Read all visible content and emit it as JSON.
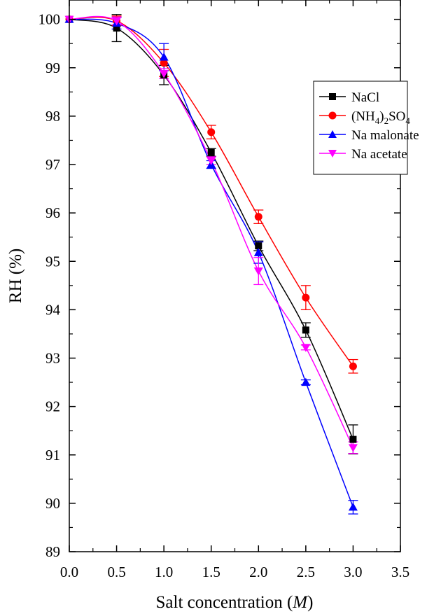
{
  "chart_data": {
    "type": "scatter",
    "xlabel": "Salt concentration (M)",
    "xlabel_parts": {
      "prefix": "Salt concentration (",
      "unit": "M",
      "suffix": ")"
    },
    "ylabel": "RH (%)",
    "xlim": [
      0,
      3.5
    ],
    "ylim": [
      89,
      100.4
    ],
    "x_ticks": [
      "0.0",
      "0.5",
      "1.0",
      "1.5",
      "2.0",
      "2.5",
      "3.0",
      "3.5"
    ],
    "y_ticks": [
      "89",
      "90",
      "91",
      "92",
      "93",
      "94",
      "95",
      "96",
      "97",
      "98",
      "99",
      "100"
    ],
    "grid": false,
    "legend_position": "top-right",
    "fit_lines": true,
    "series": [
      {
        "name": "NaCl",
        "color": "#000000",
        "marker": "square",
        "x": [
          0,
          0.5,
          1.0,
          1.5,
          2.0,
          2.5,
          3.0
        ],
        "y": [
          100.0,
          99.82,
          98.85,
          97.25,
          95.32,
          93.58,
          91.32
        ],
        "err": [
          0,
          0.28,
          0.2,
          0.08,
          0.1,
          0.15,
          0.3
        ]
      },
      {
        "name": "(NH4)2SO4",
        "name_parts": {
          "a": "(NH",
          "b": "4",
          "c": ")",
          "d": "2",
          "e": "SO",
          "f": "4"
        },
        "color": "#ff0000",
        "marker": "circle",
        "x": [
          0,
          0.5,
          1.0,
          1.5,
          2.0,
          2.5,
          3.0
        ],
        "y": [
          100.0,
          99.97,
          99.1,
          97.67,
          95.92,
          94.25,
          92.83
        ],
        "err": [
          0,
          0.1,
          0.28,
          0.14,
          0.14,
          0.25,
          0.14
        ]
      },
      {
        "name": "Na malonate",
        "color": "#0000ff",
        "marker": "triangle-up",
        "x": [
          0,
          0.5,
          1.0,
          1.5,
          2.0,
          2.5,
          3.0
        ],
        "y": [
          100.0,
          99.92,
          99.22,
          97.0,
          95.18,
          92.5,
          89.92
        ],
        "err": [
          0,
          0.12,
          0.28,
          0.08,
          0.22,
          0.05,
          0.14
        ]
      },
      {
        "name": "Na acetate",
        "color": "#ff00ff",
        "marker": "triangle-down",
        "x": [
          0,
          0.5,
          1.0,
          1.5,
          2.0,
          2.5,
          3.0
        ],
        "y": [
          100.0,
          99.97,
          98.88,
          97.08,
          94.8,
          93.22,
          91.15
        ],
        "err": [
          0,
          0.08,
          0.1,
          0.08,
          0.28,
          0.05,
          0.12
        ]
      }
    ]
  }
}
